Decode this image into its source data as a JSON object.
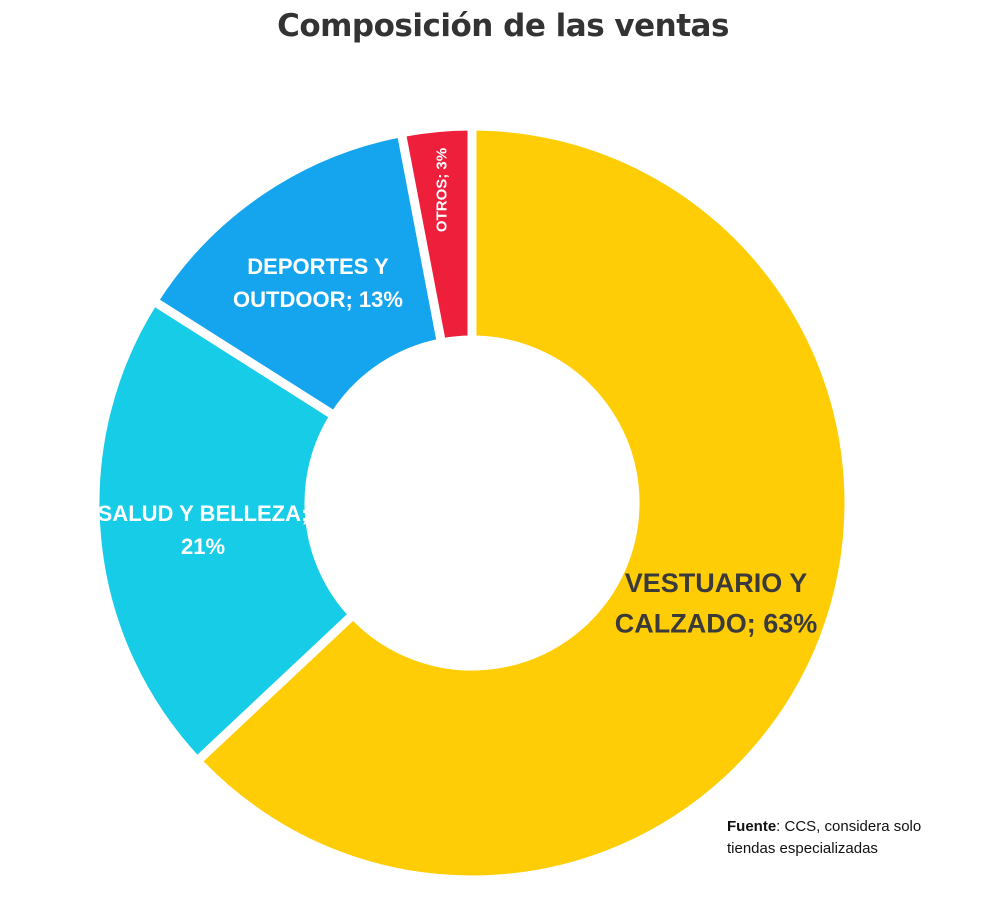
{
  "chart_data": {
    "type": "pie",
    "title": "Composición de las ventas",
    "donut": true,
    "slices": [
      {
        "name": "VESTUARIO Y CALZADO",
        "value": 63,
        "label_lines": [
          "VESTUARIO Y",
          "CALZADO; 63%"
        ],
        "color": "#FFCD05"
      },
      {
        "name": "SALUD Y BELLEZA",
        "value": 21,
        "label_lines": [
          "SALUD Y BELLEZA;",
          "21%"
        ],
        "color": "#16CCE6"
      },
      {
        "name": "DEPORTES Y OUTDOOR",
        "value": 13,
        "label_lines": [
          "DEPORTES Y",
          "OUTDOOR; 13%"
        ],
        "color": "#14A5EE"
      },
      {
        "name": "OTROS",
        "value": 3,
        "label_lines": [
          "OTROS; 3%"
        ],
        "color": "#EE1F3B"
      }
    ]
  },
  "source": {
    "label": "Fuente",
    "text": ": CCS, considera solo",
    "text_line2": "tiendas especializadas"
  }
}
